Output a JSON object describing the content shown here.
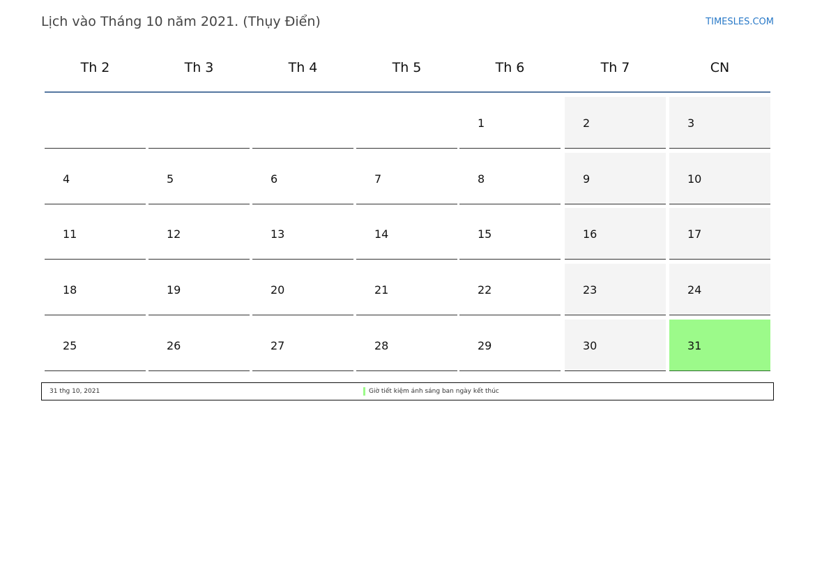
{
  "header": {
    "title": "Lịch vào Tháng 10 năm 2021. (Thụy Điển)",
    "brand": "TIMESLES.COM"
  },
  "weekdays": [
    "Th 2",
    "Th 3",
    "Th 4",
    "Th 5",
    "Th 6",
    "Th 7",
    "CN"
  ],
  "weeks": [
    [
      "",
      "",
      "",
      "",
      "1",
      "2",
      "3"
    ],
    [
      "4",
      "5",
      "6",
      "7",
      "8",
      "9",
      "10"
    ],
    [
      "11",
      "12",
      "13",
      "14",
      "15",
      "16",
      "17"
    ],
    [
      "18",
      "19",
      "20",
      "21",
      "22",
      "23",
      "24"
    ],
    [
      "25",
      "26",
      "27",
      "28",
      "29",
      "30",
      "31"
    ]
  ],
  "highlighted_day": "31",
  "colors": {
    "weekend": "#f4f4f4",
    "highlight": "#9cfa8a",
    "header_line": "#5577a0",
    "brand": "#2a7ac8"
  },
  "legend": {
    "date": "31 thg 10, 2021",
    "event": "Giờ tiết kiệm ánh sáng ban ngày kết thúc"
  }
}
